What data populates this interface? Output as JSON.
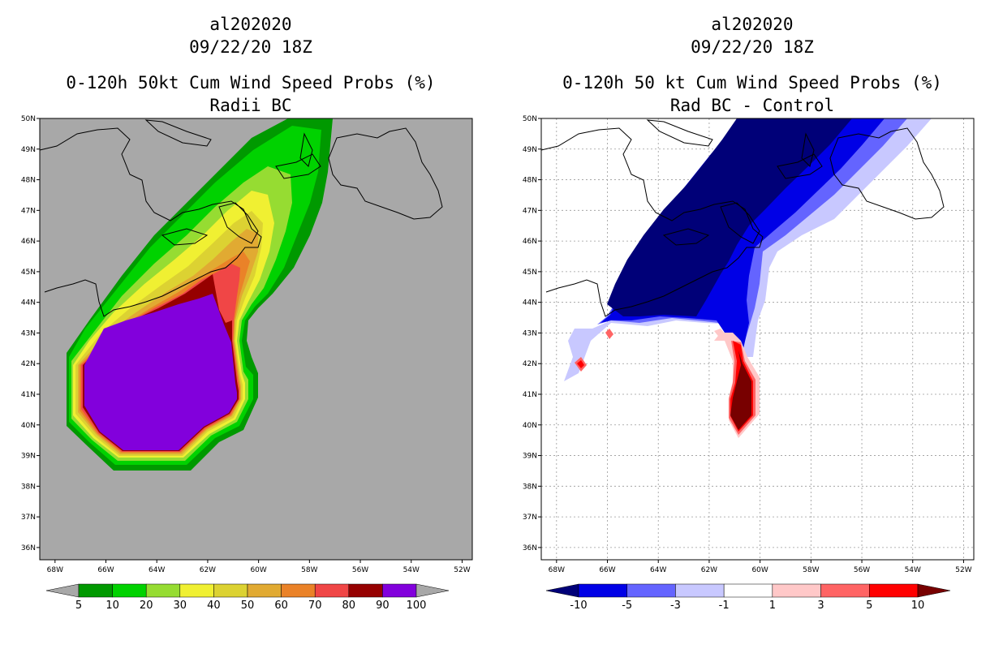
{
  "chart_data": [
    {
      "type": "heatmap",
      "panel": "left",
      "title_lines": [
        "al202020",
        "09/22/20 18Z",
        "0-120h 50kt Cum Wind Speed Probs (%)",
        "Radii BC"
      ],
      "x_ticks": [
        "68W",
        "66W",
        "64W",
        "62W",
        "60W",
        "58W",
        "56W",
        "54W",
        "52W"
      ],
      "y_ticks": [
        "50N",
        "49N",
        "48N",
        "47N",
        "46N",
        "45N",
        "44N",
        "43N",
        "42N",
        "41N",
        "40N",
        "39N",
        "38N",
        "37N",
        "36N"
      ],
      "lon_range": [
        -68.6,
        -51.6
      ],
      "lat_range": [
        35.6,
        50.0
      ],
      "background": "#a8a8a8",
      "colorbar": {
        "labels": [
          "5",
          "10",
          "20",
          "30",
          "40",
          "50",
          "60",
          "70",
          "80",
          "90",
          "100"
        ],
        "colors": [
          "#009900",
          "#00d200",
          "#96dc32",
          "#f0f032",
          "#dcd232",
          "#e1aa32",
          "#ea8228",
          "#f04646",
          "#960000",
          "#8200dc"
        ],
        "under_color": "#a8a8a8",
        "over_color": "#a8a8a8"
      }
    },
    {
      "type": "heatmap",
      "panel": "right",
      "title_lines": [
        "al202020",
        "09/22/20 18Z",
        "0-120h 50 kt Cum Wind Speed Probs (%)",
        "Rad BC - Control"
      ],
      "x_ticks": [
        "68W",
        "66W",
        "64W",
        "62W",
        "60W",
        "58W",
        "56W",
        "54W",
        "52W"
      ],
      "y_ticks": [
        "50N",
        "49N",
        "48N",
        "47N",
        "46N",
        "45N",
        "44N",
        "43N",
        "42N",
        "41N",
        "40N",
        "39N",
        "38N",
        "37N",
        "36N"
      ],
      "lon_range": [
        -68.6,
        -51.6
      ],
      "lat_range": [
        35.6,
        50.0
      ],
      "background": "#ffffff",
      "colorbar": {
        "labels": [
          "-10",
          "-5",
          "-3",
          "-1",
          "1",
          "3",
          "5",
          "10"
        ],
        "colors": [
          "#0000e6",
          "#6464ff",
          "#c8c8ff",
          "#ffffff",
          "#ffc8c8",
          "#ff6464",
          "#ff0000"
        ],
        "under_color": "#000078",
        "over_color": "#780000"
      }
    }
  ]
}
